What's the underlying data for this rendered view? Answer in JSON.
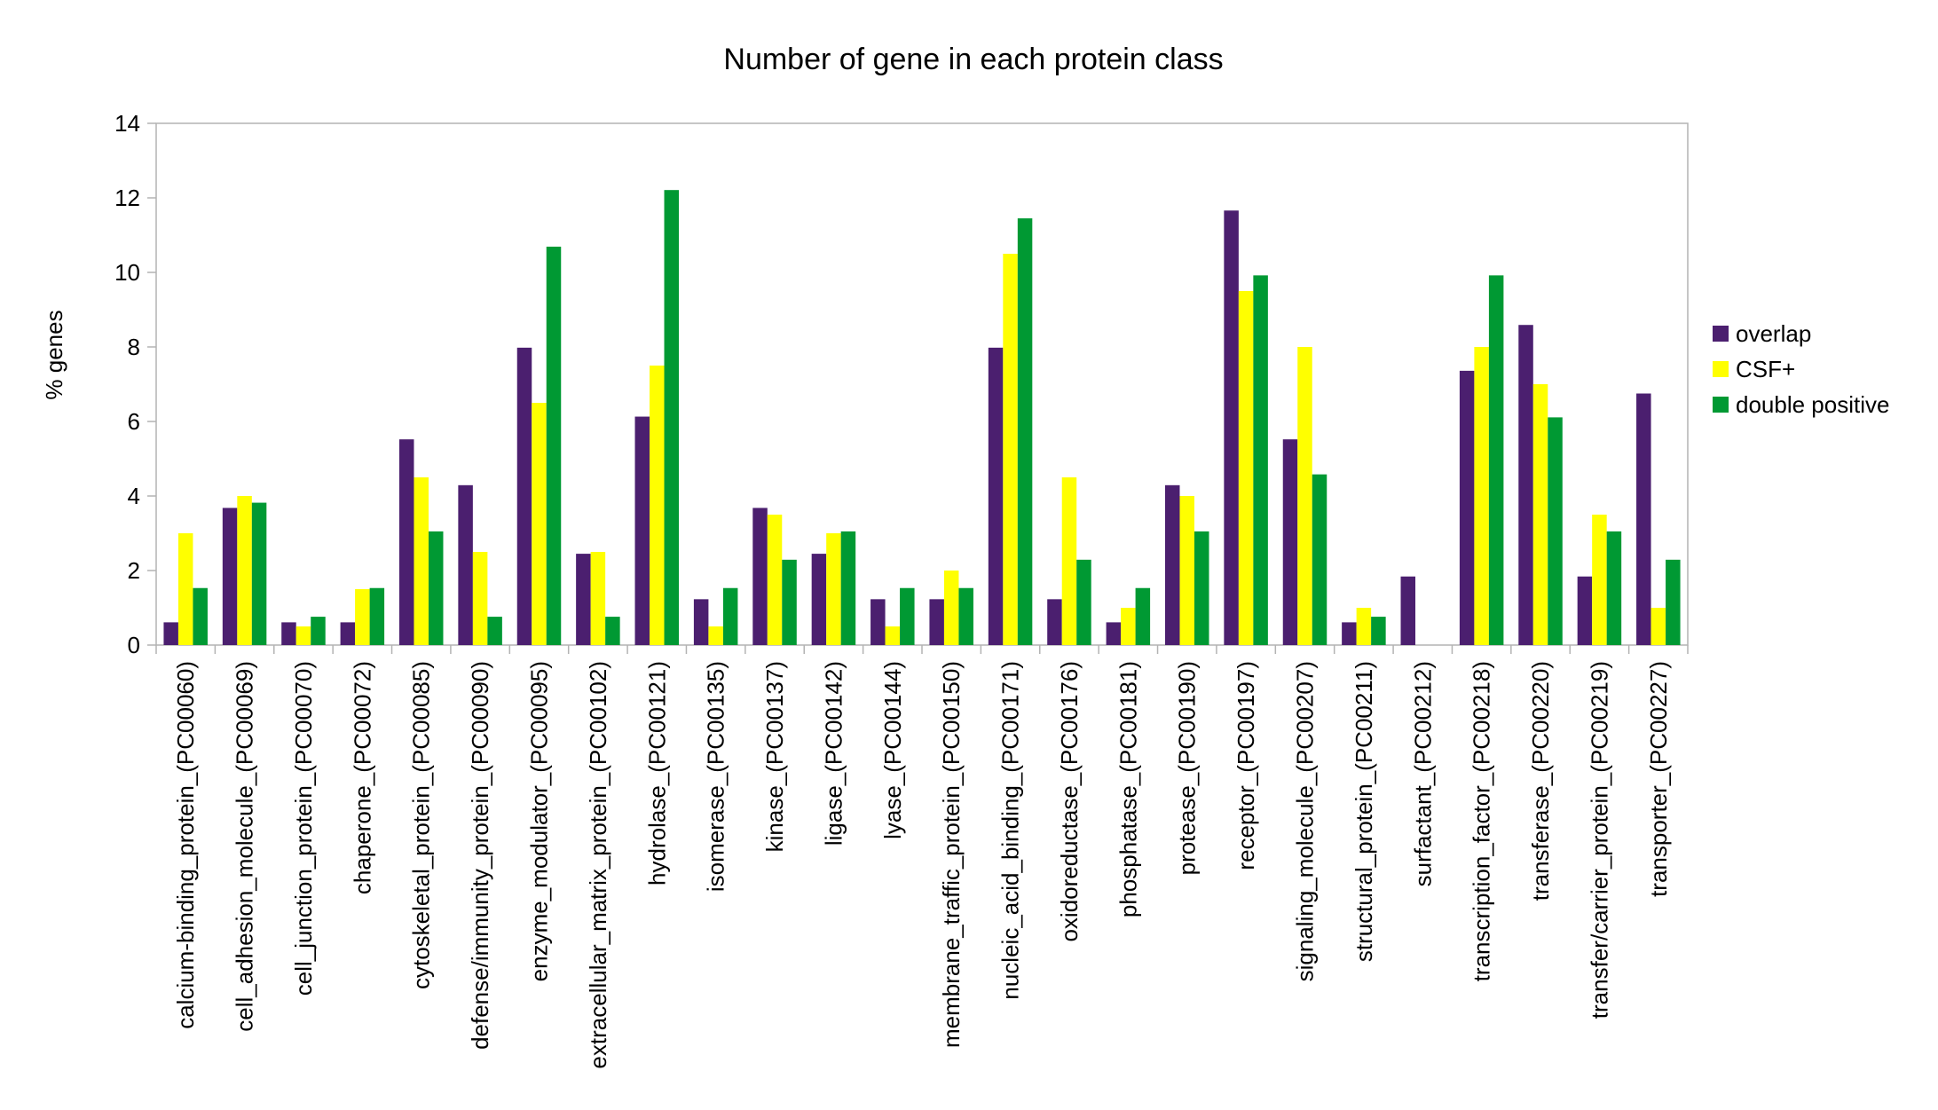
{
  "chart_data": {
    "type": "bar",
    "title": "Number of gene in each protein class",
    "xlabel": "",
    "ylabel": "% genes",
    "ylim": [
      0,
      14
    ],
    "yticks": [
      "0",
      "2",
      "4",
      "6",
      "8",
      "10",
      "12",
      "14"
    ],
    "grid": false,
    "legend_position": "right",
    "categories": [
      "calcium-binding_protein_(PC00060)",
      "cell_adhesion_molecule_(PC00069)",
      "cell_junction_protein_(PC00070)",
      "chaperone_(PC00072)",
      "cytoskeletal_protein_(PC00085)",
      "defense/immunity_protein_(PC00090)",
      "enzyme_modulator_(PC00095)",
      "extracellular_matrix_protein_(PC00102)",
      "hydrolase_(PC00121)",
      "isomerase_(PC00135)",
      "kinase_(PC00137)",
      "ligase_(PC00142)",
      "lyase_(PC00144)",
      "membrane_traffic_protein_(PC00150)",
      "nucleic_acid_binding_(PC00171)",
      "oxidoreductase_(PC00176)",
      "phosphatase_(PC00181)",
      "protease_(PC00190)",
      "receptor_(PC00197)",
      "signaling_molecule_(PC00207)",
      "structural_protein_(PC00211)",
      "surfactant_(PC00212)",
      "transcription_factor_(PC00218)",
      "transferase_(PC00220)",
      "transfer/carrier_protein_(PC00219)",
      "transporter_(PC00227)"
    ],
    "series": [
      {
        "name": "overlap",
        "color": "#4b1f6f",
        "values": [
          0.61,
          3.68,
          0.61,
          0.61,
          5.52,
          4.29,
          7.98,
          2.45,
          6.13,
          1.23,
          3.68,
          2.45,
          1.23,
          1.23,
          7.98,
          1.23,
          0.61,
          4.29,
          11.66,
          5.52,
          0.61,
          1.84,
          7.36,
          8.59,
          1.84,
          6.75
        ]
      },
      {
        "name": "CSF+",
        "color": "#ffff00",
        "values": [
          3.0,
          4.0,
          0.5,
          1.5,
          4.5,
          2.5,
          6.5,
          2.5,
          7.5,
          0.5,
          3.5,
          3.0,
          0.5,
          2.0,
          10.5,
          4.5,
          1.0,
          4.0,
          9.5,
          8.0,
          1.0,
          0,
          8.0,
          7.0,
          3.5,
          1.0
        ]
      },
      {
        "name": "double positive",
        "color": "#009933",
        "values": [
          1.53,
          3.82,
          0.76,
          1.53,
          3.05,
          0.76,
          10.69,
          0.76,
          12.21,
          1.53,
          2.29,
          3.05,
          1.53,
          1.53,
          11.45,
          2.29,
          1.53,
          3.05,
          9.92,
          4.58,
          0.76,
          0,
          9.92,
          6.11,
          3.05,
          2.29
        ]
      }
    ]
  }
}
